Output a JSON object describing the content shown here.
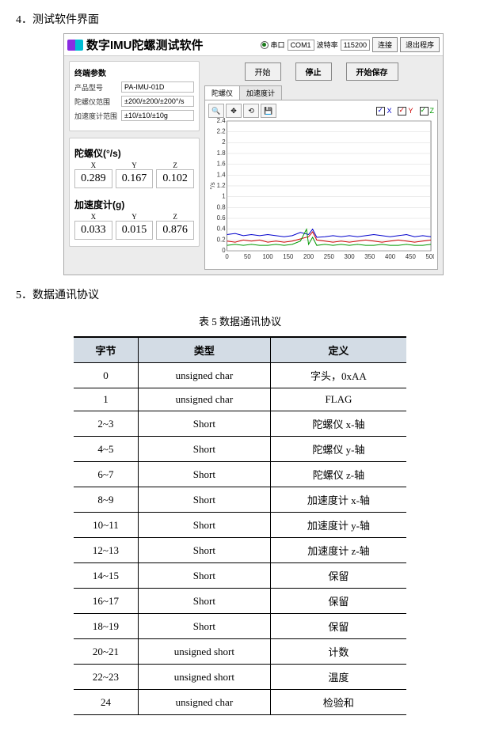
{
  "section4_title": "4．测试软件界面",
  "section5_title": "5．数据通讯协议",
  "table_caption": "表 5  数据通讯协议",
  "app": {
    "title": "数字IMU陀螺测试软件",
    "serial_label": "串口",
    "com_value": "COM1",
    "baud_label": "波特率",
    "baud_value": "115200",
    "connect_btn": "连接",
    "exit_btn": "退出程序",
    "action_start": "开始",
    "action_stop": "停止",
    "action_save": "开始保存",
    "params_title": "终端参数",
    "params": [
      {
        "label": "产品型号",
        "value": "PA-IMU-01D"
      },
      {
        "label": "陀螺仪范围",
        "value": "±200/±200/±200°/s"
      },
      {
        "label": "加速度计范围",
        "value": "±10/±10/±10g"
      }
    ],
    "gyro_title": "陀螺仪(°/s)",
    "gyro": {
      "x": "0.289",
      "y": "0.167",
      "z": "0.102"
    },
    "accel_title": "加速度计(g)",
    "accel": {
      "x": "0.033",
      "y": "0.015",
      "z": "0.876"
    },
    "tab_gyro": "陀螺仪",
    "tab_accel": "加速度计",
    "legend_x": "X",
    "legend_y": "Y",
    "legend_z": "Z"
  },
  "chart": {
    "type": "line",
    "background_color": "#ffffff",
    "grid_color": "#cccccc",
    "axis_color": "#333333",
    "label_fontsize": 8,
    "ylabel": "°/s",
    "xlim": [
      0,
      500
    ],
    "xtick_step": 50,
    "ylim": [
      0,
      2.4
    ],
    "ytick_step": 0.2,
    "series": [
      {
        "name": "X",
        "color": "#0000cc",
        "x": [
          0,
          20,
          40,
          60,
          80,
          100,
          120,
          140,
          160,
          180,
          200,
          210,
          220,
          240,
          260,
          280,
          300,
          320,
          340,
          360,
          380,
          400,
          420,
          440,
          460,
          480,
          500
        ],
        "y": [
          0.3,
          0.32,
          0.28,
          0.3,
          0.28,
          0.3,
          0.28,
          0.26,
          0.28,
          0.34,
          0.3,
          0.4,
          0.25,
          0.26,
          0.28,
          0.26,
          0.28,
          0.26,
          0.28,
          0.3,
          0.28,
          0.26,
          0.28,
          0.3,
          0.26,
          0.28,
          0.26
        ]
      },
      {
        "name": "Y",
        "color": "#cc0000",
        "x": [
          0,
          20,
          40,
          60,
          80,
          100,
          120,
          140,
          160,
          180,
          200,
          210,
          220,
          240,
          260,
          280,
          300,
          320,
          340,
          360,
          380,
          400,
          420,
          440,
          460,
          480,
          500
        ],
        "y": [
          0.18,
          0.16,
          0.2,
          0.18,
          0.2,
          0.16,
          0.18,
          0.16,
          0.18,
          0.22,
          0.26,
          0.35,
          0.2,
          0.18,
          0.16,
          0.18,
          0.16,
          0.18,
          0.2,
          0.18,
          0.16,
          0.18,
          0.2,
          0.18,
          0.16,
          0.18,
          0.2
        ]
      },
      {
        "name": "Z",
        "color": "#009900",
        "x": [
          0,
          20,
          40,
          60,
          80,
          100,
          120,
          140,
          160,
          180,
          195,
          200,
          210,
          220,
          240,
          260,
          280,
          300,
          320,
          340,
          360,
          380,
          400,
          420,
          440,
          460,
          480,
          500
        ],
        "y": [
          0.1,
          0.12,
          0.1,
          0.12,
          0.1,
          0.1,
          0.12,
          0.1,
          0.12,
          0.18,
          0.4,
          0.12,
          0.25,
          0.1,
          0.12,
          0.1,
          0.12,
          0.1,
          0.12,
          0.1,
          0.1,
          0.12,
          0.1,
          0.1,
          0.12,
          0.1,
          0.1,
          0.12
        ]
      }
    ]
  },
  "table": {
    "columns": [
      "字节",
      "类型",
      "定义"
    ],
    "rows": [
      [
        "0",
        "unsigned char",
        "字头，0xAA"
      ],
      [
        "1",
        "unsigned char",
        "FLAG"
      ],
      [
        "2~3",
        "Short",
        "陀螺仪 x-轴"
      ],
      [
        "4~5",
        "Short",
        "陀螺仪 y-轴"
      ],
      [
        "6~7",
        "Short",
        "陀螺仪 z-轴"
      ],
      [
        "8~9",
        "Short",
        "加速度计 x-轴"
      ],
      [
        "10~11",
        "Short",
        "加速度计 y-轴"
      ],
      [
        "12~13",
        "Short",
        "加速度计 z-轴"
      ],
      [
        "14~15",
        "Short",
        "保留"
      ],
      [
        "16~17",
        "Short",
        "保留"
      ],
      [
        "18~19",
        "Short",
        "保留"
      ],
      [
        "20~21",
        "unsigned short",
        "计数"
      ],
      [
        "22~23",
        "unsigned short",
        "温度"
      ],
      [
        "24",
        "unsigned char",
        "检验和"
      ]
    ]
  }
}
